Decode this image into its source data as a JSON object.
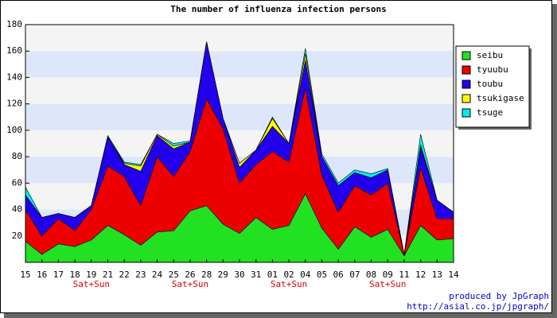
{
  "chart_data": {
    "type": "stacked_area",
    "title": "The number of influenza infection persons",
    "categories": [
      "15",
      "16",
      "17",
      "18",
      "19",
      "21",
      "22",
      "23",
      "24",
      "25",
      "26",
      "28",
      "29",
      "30",
      "31",
      "01",
      "02",
      "04",
      "05",
      "06",
      "07",
      "08",
      "09",
      "11",
      "12",
      "13",
      "14"
    ],
    "sublabels": [
      null,
      null,
      null,
      null,
      "Sat+Sun",
      null,
      null,
      null,
      null,
      null,
      "Sat+Sun",
      null,
      null,
      null,
      null,
      null,
      "Sat+Sun",
      null,
      null,
      null,
      null,
      null,
      "Sat+Sun",
      null,
      null,
      null,
      null
    ],
    "sublabel_color": "#dd0000",
    "series": [
      {
        "name": "seibu",
        "color": "#22e022",
        "values": [
          16,
          6,
          14,
          12,
          17,
          28,
          21,
          13,
          23,
          24,
          39,
          43,
          29,
          22,
          34,
          25,
          28,
          52,
          26,
          10,
          27,
          19,
          25,
          5,
          28,
          17,
          18
        ]
      },
      {
        "name": "tyuubu",
        "color": "#ee0000",
        "values": [
          24,
          14,
          19,
          12,
          23,
          45,
          44,
          30,
          57,
          41,
          45,
          81,
          72,
          38,
          40,
          59,
          48,
          80,
          40,
          28,
          31,
          32,
          35,
          1,
          44,
          16,
          15
        ]
      },
      {
        "name": "toubu",
        "color": "#2200ee",
        "values": [
          11,
          14,
          4,
          10,
          3,
          22,
          9,
          26,
          16,
          21,
          7,
          43,
          8,
          12,
          11,
          19,
          14,
          21,
          14,
          20,
          10,
          13,
          10,
          0,
          15,
          14,
          5
        ]
      },
      {
        "name": "tsukigase",
        "color": "#ffff00",
        "values": [
          0,
          0,
          0,
          0,
          0,
          0,
          1,
          4,
          1,
          2,
          0,
          0,
          0,
          3,
          0,
          6,
          0,
          5,
          0,
          0,
          0,
          0,
          0,
          0,
          2,
          0,
          0
        ]
      },
      {
        "name": "tsuge",
        "color": "#00eeee",
        "values": [
          6,
          0,
          0,
          0,
          0,
          1,
          1,
          1,
          0,
          2,
          1,
          0,
          0,
          0,
          0,
          1,
          0,
          4,
          2,
          2,
          2,
          3,
          1,
          0,
          8,
          0,
          0
        ]
      }
    ],
    "ylim": [
      0,
      180
    ],
    "yticks": [
      20,
      40,
      60,
      80,
      100,
      120,
      140,
      160,
      180
    ],
    "band_colors": [
      "#f4f4f4",
      "#dde6fa"
    ],
    "legend": "top-right",
    "footer": [
      "produced by JpGraph",
      "http://asial.co.jp/jpgraph/"
    ]
  }
}
